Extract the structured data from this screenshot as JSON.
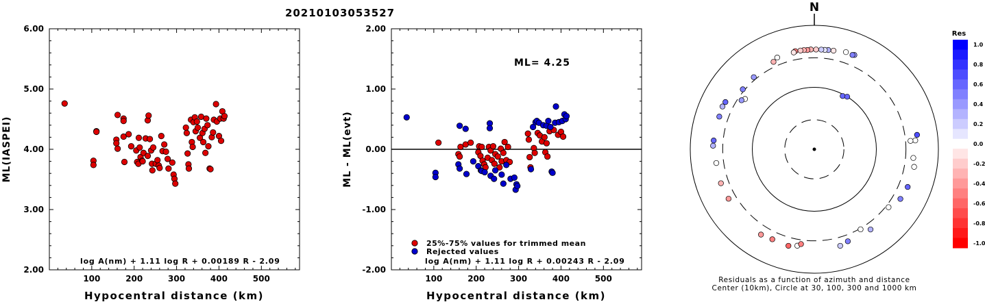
{
  "title": "20210103053527",
  "chart_data": [
    {
      "type": "scatter",
      "xlabel": "Hypocentral distance (km)",
      "ylabel": "ML(IASPEI)",
      "xlim": [
        0,
        590
      ],
      "ylim": [
        2.0,
        6.0
      ],
      "x_ticks": [
        "100",
        "200",
        "300",
        "400",
        "500"
      ],
      "y_ticks": [
        "2.00",
        "3.00",
        "4.00",
        "5.00",
        "6.00"
      ],
      "formula": "log A(nm) + 1.11 log R + 0.00189 R - 2.09",
      "series": [
        {
          "color": "#dd0000",
          "points": [
            [
              36,
              4.76
            ],
            [
              104,
              3.81
            ],
            [
              104,
              3.74
            ],
            [
              111,
              4.3
            ],
            [
              111,
              4.29
            ],
            [
              158,
              4.16
            ],
            [
              158,
              4.1
            ],
            [
              161,
              4.57
            ],
            [
              161,
              4.01
            ],
            [
              175,
              4.51
            ],
            [
              175,
              4.47
            ],
            [
              175,
              4.21
            ],
            [
              177,
              3.79
            ],
            [
              187,
              4.25
            ],
            [
              193,
              4.05
            ],
            [
              205,
              3.98
            ],
            [
              207,
              3.79
            ],
            [
              210,
              3.76
            ],
            [
              211,
              4.19
            ],
            [
              213,
              4.03
            ],
            [
              215,
              3.87
            ],
            [
              219,
              3.81
            ],
            [
              220,
              3.8
            ],
            [
              222,
              3.94
            ],
            [
              227,
              4.18
            ],
            [
              232,
              4.48
            ],
            [
              232,
              3.89
            ],
            [
              234,
              4.56
            ],
            [
              237,
              4.17
            ],
            [
              240,
              3.98
            ],
            [
              242,
              3.76
            ],
            [
              243,
              3.65
            ],
            [
              245,
              4.03
            ],
            [
              251,
              3.76
            ],
            [
              255,
              3.82
            ],
            [
              258,
              3.73
            ],
            [
              260,
              3.69
            ],
            [
              264,
              4.22
            ],
            [
              267,
              3.97
            ],
            [
              271,
              4.08
            ],
            [
              275,
              3.96
            ],
            [
              279,
              3.84
            ],
            [
              281,
              3.68
            ],
            [
              290,
              3.78
            ],
            [
              293,
              3.58
            ],
            [
              295,
              3.51
            ],
            [
              297,
              3.43
            ],
            [
              322,
              4.36
            ],
            [
              324,
              4.27
            ],
            [
              326,
              3.93
            ],
            [
              328,
              3.75
            ],
            [
              329,
              3.68
            ],
            [
              334,
              4.49
            ],
            [
              336,
              4.12
            ],
            [
              338,
              4.04
            ],
            [
              340,
              4.45
            ],
            [
              343,
              4.53
            ],
            [
              345,
              4.3
            ],
            [
              348,
              4.46
            ],
            [
              350,
              4.36
            ],
            [
              355,
              4.19
            ],
            [
              358,
              4.54
            ],
            [
              361,
              4.27
            ],
            [
              363,
              4.12
            ],
            [
              366,
              4.34
            ],
            [
              368,
              3.94
            ],
            [
              370,
              4.51
            ],
            [
              373,
              4.4
            ],
            [
              375,
              4.05
            ],
            [
              378,
              3.68
            ],
            [
              380,
              3.67
            ],
            [
              383,
              4.2
            ],
            [
              386,
              4.28
            ],
            [
              388,
              4.49
            ],
            [
              393,
              4.75
            ],
            [
              395,
              4.46
            ],
            [
              400,
              4.22
            ],
            [
              403,
              4.51
            ],
            [
              405,
              4.14
            ],
            [
              408,
              4.63
            ],
            [
              411,
              4.51
            ],
            [
              413,
              4.55
            ]
          ]
        }
      ]
    },
    {
      "type": "scatter",
      "xlabel": "Hypocentral distance (km)",
      "ylabel": "ML - ML(evt)",
      "xlim": [
        0,
        590
      ],
      "ylim": [
        -2.0,
        2.0
      ],
      "x_ticks": [
        "100",
        "200",
        "300",
        "400",
        "500"
      ],
      "y_ticks": [
        "-2.00",
        "-1.00",
        "0.00",
        "1.00",
        "2.00"
      ],
      "ml_label": "ML= 4.25",
      "formula": "log A(nm) + 1.11 log R + 0.00243 R - 2.09",
      "legend": [
        "25%-75% values for trimmed mean",
        "Rejected values"
      ],
      "legend_position": "bottom-left",
      "series": [
        {
          "name": "25%-75% values for trimmed mean",
          "color": "#dd0000",
          "points": [
            [
              111,
              0.11
            ],
            [
              158,
              -0.08
            ],
            [
              161,
              -0.12
            ],
            [
              163,
              0.04
            ],
            [
              175,
              0.08
            ],
            [
              187,
              0.11
            ],
            [
              205,
              -0.05
            ],
            [
              207,
              0.05
            ],
            [
              210,
              -0.11
            ],
            [
              213,
              0.04
            ],
            [
              215,
              -0.19
            ],
            [
              219,
              -0.25
            ],
            [
              222,
              -0.3
            ],
            [
              227,
              -0.14
            ],
            [
              230,
              0.04
            ],
            [
              234,
              -0.02
            ],
            [
              237,
              -0.18
            ],
            [
              240,
              0.05
            ],
            [
              243,
              -0.24
            ],
            [
              245,
              -0.08
            ],
            [
              251,
              -0.12
            ],
            [
              255,
              -0.3
            ],
            [
              258,
              0.01
            ],
            [
              260,
              -0.2
            ],
            [
              264,
              -0.06
            ],
            [
              267,
              0.12
            ],
            [
              271,
              -0.18
            ],
            [
              275,
              0.04
            ],
            [
              279,
              -0.21
            ],
            [
              322,
              0.26
            ],
            [
              324,
              0.16
            ],
            [
              326,
              -0.13
            ],
            [
              328,
              -0.3
            ],
            [
              336,
              0.02
            ],
            [
              338,
              -0.06
            ],
            [
              345,
              0.27
            ],
            [
              350,
              0.23
            ],
            [
              355,
              0.13
            ],
            [
              361,
              0.2
            ],
            [
              363,
              -0.05
            ],
            [
              366,
              0.1
            ],
            [
              368,
              -0.12
            ],
            [
              373,
              0.3
            ],
            [
              383,
              0.32
            ],
            [
              393,
              0.24
            ],
            [
              400,
              0.29
            ],
            [
              405,
              0.21
            ]
          ]
        },
        {
          "name": "Rejected values",
          "color": "#0000cc",
          "points": [
            [
              36,
              0.53
            ],
            [
              104,
              -0.39
            ],
            [
              104,
              -0.46
            ],
            [
              158,
              -0.25
            ],
            [
              161,
              0.39
            ],
            [
              161,
              -0.32
            ],
            [
              175,
              0.34
            ],
            [
              177,
              -0.41
            ],
            [
              193,
              -0.2
            ],
            [
              205,
              -0.28
            ],
            [
              211,
              -0.35
            ],
            [
              213,
              -0.36
            ],
            [
              220,
              -0.38
            ],
            [
              232,
              0.43
            ],
            [
              232,
              0.35
            ],
            [
              234,
              -0.44
            ],
            [
              242,
              -0.49
            ],
            [
              245,
              -0.35
            ],
            [
              260,
              -0.42
            ],
            [
              264,
              -0.57
            ],
            [
              271,
              -0.26
            ],
            [
              281,
              -0.49
            ],
            [
              290,
              -0.47
            ],
            [
              293,
              -0.67
            ],
            [
              295,
              -0.58
            ],
            [
              297,
              -0.61
            ],
            [
              329,
              -0.33
            ],
            [
              334,
              0.37
            ],
            [
              340,
              0.45
            ],
            [
              343,
              0.47
            ],
            [
              348,
              0.44
            ],
            [
              358,
              0.4
            ],
            [
              366,
              0.39
            ],
            [
              370,
              0.47
            ],
            [
              375,
              0.37
            ],
            [
              378,
              -0.37
            ],
            [
              380,
              -0.39
            ],
            [
              386,
              0.44
            ],
            [
              388,
              0.71
            ],
            [
              395,
              0.45
            ],
            [
              403,
              0.47
            ],
            [
              408,
              0.58
            ],
            [
              411,
              0.5
            ],
            [
              413,
              0.55
            ]
          ]
        }
      ]
    },
    {
      "type": "polar-scatter",
      "north_label": "N",
      "caption_line1": "Residuals as a function of azimuth and distance",
      "caption_line2": "Center (10km), Circle at 30, 100, 300 and 1000 km",
      "rings_km": [
        30,
        100,
        300,
        1000
      ],
      "colorbar": {
        "title": "Res",
        "ticks": [
          "1.0",
          "0.8",
          "0.6",
          "0.4",
          "0.2",
          "0.0",
          "-0.2",
          "-0.4",
          "-0.6",
          "-0.8",
          "-1.0"
        ],
        "positive_color": "#0000ff",
        "zero_color": "#ffffff",
        "negative_color": "#ff0000"
      },
      "stations": [
        {
          "az": 23,
          "dist": 450,
          "res": 0.4
        },
        {
          "az": 22,
          "dist": 438,
          "res": 0.5
        },
        {
          "az": 18,
          "dist": 445,
          "res": 0.0
        },
        {
          "az": 11,
          "dist": 418,
          "res": -0.1
        },
        {
          "az": 8,
          "dist": 414,
          "res": 0.3
        },
        {
          "az": 6,
          "dist": 409,
          "res": 0.1
        },
        {
          "az": 4,
          "dist": 409,
          "res": 0.2
        },
        {
          "az": 1,
          "dist": 407,
          "res": -0.2
        },
        {
          "az": 358,
          "dist": 408,
          "res": -0.3
        },
        {
          "az": 356,
          "dist": 403,
          "res": -0.4
        },
        {
          "az": 354,
          "dist": 407,
          "res": -0.3
        },
        {
          "az": 352,
          "dist": 406,
          "res": -0.2
        },
        {
          "az": 349,
          "dist": 410,
          "res": -0.5
        },
        {
          "az": 348,
          "dist": 396,
          "res": -0.1
        },
        {
          "az": 338,
          "dist": 395,
          "res": 0.0
        },
        {
          "az": 335,
          "dist": 360,
          "res": -0.3
        },
        {
          "az": 320,
          "dist": 330,
          "res": 0.4
        },
        {
          "az": 310,
          "dist": 320,
          "res": 0.5
        },
        {
          "az": 306,
          "dist": 240,
          "res": 0.0
        },
        {
          "az": 304,
          "dist": 260,
          "res": 0.4
        },
        {
          "az": 298,
          "dist": 420,
          "res": 0.6
        },
        {
          "az": 295,
          "dist": 430,
          "res": 0.3
        },
        {
          "az": 289,
          "dist": 417,
          "res": 0.5
        },
        {
          "az": 275,
          "dist": 425,
          "res": 0.6
        },
        {
          "az": 272,
          "dist": 430,
          "res": 0.3
        },
        {
          "az": 262,
          "dist": 394,
          "res": 0.0
        },
        {
          "az": 250,
          "dist": 400,
          "res": -0.3
        },
        {
          "az": 240,
          "dist": 395,
          "res": -0.4
        },
        {
          "az": 212,
          "dist": 420,
          "res": -0.4
        },
        {
          "az": 205,
          "dist": 400,
          "res": -0.5
        },
        {
          "az": 195,
          "dist": 410,
          "res": -0.6
        },
        {
          "az": 190,
          "dist": 380,
          "res": 0.0
        },
        {
          "az": 188,
          "dist": 350,
          "res": -0.5
        },
        {
          "az": 165,
          "dist": 410,
          "res": 0.2
        },
        {
          "az": 160,
          "dist": 380,
          "res": 0.5
        },
        {
          "az": 150,
          "dist": 310,
          "res": 0.0
        },
        {
          "az": 145,
          "dist": 380,
          "res": 0.3
        },
        {
          "az": 128,
          "dist": 330,
          "res": 0.0
        },
        {
          "az": 120,
          "dist": 400,
          "res": 0.5
        },
        {
          "az": 112,
          "dist": 420,
          "res": 0.6
        },
        {
          "az": 95,
          "dist": 400,
          "res": 0.0
        },
        {
          "az": 85,
          "dist": 430,
          "res": 0.0
        },
        {
          "az": 85,
          "dist": 360,
          "res": 0.0
        },
        {
          "az": 82,
          "dist": 470,
          "res": 0.7
        },
        {
          "az": 100,
          "dist": 430,
          "res": 0.0
        },
        {
          "az": 28,
          "dist": 94,
          "res": 0.6
        },
        {
          "az": 32,
          "dist": 100,
          "res": 0.6
        }
      ]
    }
  ]
}
